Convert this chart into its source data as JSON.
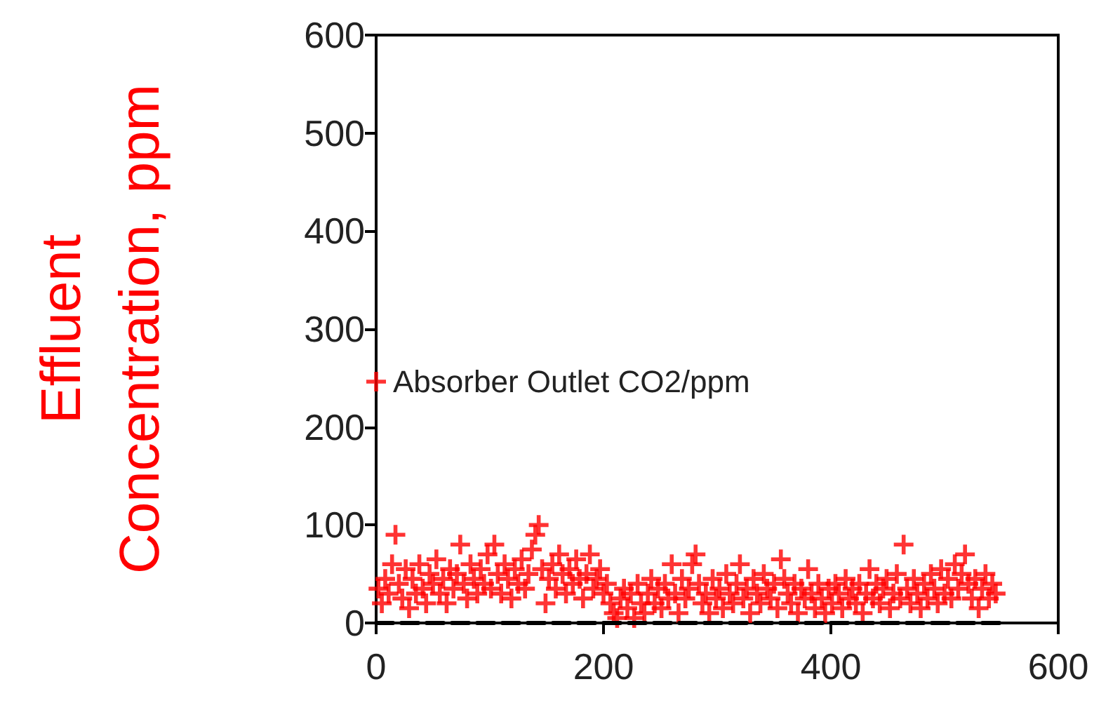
{
  "chart_data": {
    "type": "scatter",
    "ylabel": "Effluent Concentration, ppm",
    "xlim": [
      0,
      600
    ],
    "ylim": [
      0,
      600
    ],
    "xticks": [
      0,
      200,
      400,
      600
    ],
    "yticks": [
      0,
      100,
      200,
      300,
      400,
      500,
      600
    ],
    "grid": false,
    "legend": "left",
    "marker": "cross",
    "series": [
      {
        "name": "Absorber Outlet CO2/ppm",
        "color": "#ff0000",
        "x": [
          2,
          5,
          8,
          11,
          14,
          17,
          20,
          23,
          26,
          29,
          32,
          35,
          38,
          41,
          44,
          47,
          50,
          53,
          56,
          59,
          62,
          65,
          68,
          71,
          74,
          77,
          80,
          83,
          86,
          89,
          92,
          95,
          98,
          101,
          104,
          107,
          110,
          113,
          116,
          119,
          122,
          125,
          128,
          131,
          134,
          137,
          140,
          143,
          146,
          149,
          152,
          155,
          158,
          161,
          164,
          167,
          170,
          173,
          176,
          179,
          182,
          185,
          188,
          191,
          194,
          197,
          200,
          203,
          206,
          209,
          212,
          215,
          218,
          221,
          224,
          227,
          230,
          233,
          236,
          239,
          242,
          245,
          248,
          251,
          254,
          257,
          260,
          263,
          266,
          269,
          272,
          275,
          278,
          281,
          284,
          287,
          290,
          293,
          296,
          299,
          302,
          305,
          308,
          311,
          314,
          317,
          320,
          323,
          326,
          329,
          332,
          335,
          338,
          341,
          344,
          347,
          350,
          353,
          356,
          359,
          362,
          365,
          368,
          371,
          374,
          377,
          380,
          383,
          386,
          389,
          392,
          395,
          398,
          401,
          404,
          407,
          410,
          413,
          416,
          419,
          422,
          425,
          428,
          431,
          434,
          437,
          440,
          443,
          446,
          449,
          452,
          455,
          458,
          461,
          464,
          467,
          470,
          473,
          476,
          479,
          482,
          485,
          488,
          491,
          494,
          497,
          500,
          503,
          506,
          509,
          512,
          515,
          518,
          521,
          524,
          527,
          530,
          533,
          536,
          539,
          542,
          545
        ],
        "values": [
          35,
          20,
          45,
          30,
          60,
          90,
          40,
          25,
          55,
          15,
          45,
          30,
          60,
          35,
          20,
          50,
          40,
          65,
          30,
          45,
          20,
          55,
          35,
          50,
          80,
          40,
          25,
          60,
          45,
          30,
          55,
          40,
          70,
          35,
          80,
          50,
          30,
          60,
          45,
          25,
          55,
          40,
          65,
          35,
          50,
          75,
          90,
          100,
          55,
          20,
          45,
          60,
          35,
          70,
          50,
          30,
          55,
          40,
          65,
          45,
          25,
          50,
          70,
          35,
          45,
          55,
          30,
          40,
          20,
          10,
          5,
          25,
          35,
          15,
          30,
          5,
          40,
          20,
          10,
          30,
          45,
          20,
          35,
          15,
          40,
          25,
          60,
          30,
          10,
          45,
          25,
          35,
          60,
          70,
          40,
          20,
          30,
          10,
          45,
          25,
          35,
          15,
          50,
          30,
          20,
          40,
          60,
          25,
          35,
          10,
          45,
          30,
          20,
          50,
          35,
          25,
          40,
          15,
          65,
          45,
          30,
          20,
          40,
          10,
          35,
          25,
          55,
          30,
          15,
          40,
          25,
          10,
          35,
          20,
          40,
          30,
          15,
          45,
          25,
          35,
          20,
          40,
          10,
          30,
          55,
          25,
          40,
          20,
          35,
          45,
          15,
          30,
          50,
          25,
          80,
          35,
          20,
          45,
          30,
          15,
          40,
          25,
          50,
          35,
          20,
          55,
          30,
          45,
          25,
          60,
          35,
          50,
          70,
          40,
          25,
          45,
          15,
          35,
          50,
          25,
          40,
          30
        ]
      },
      {
        "type": "line",
        "color": "#000000",
        "line_style": "dashed",
        "marker": "none",
        "x": [
          0,
          550
        ],
        "values": [
          0,
          0
        ]
      }
    ]
  }
}
